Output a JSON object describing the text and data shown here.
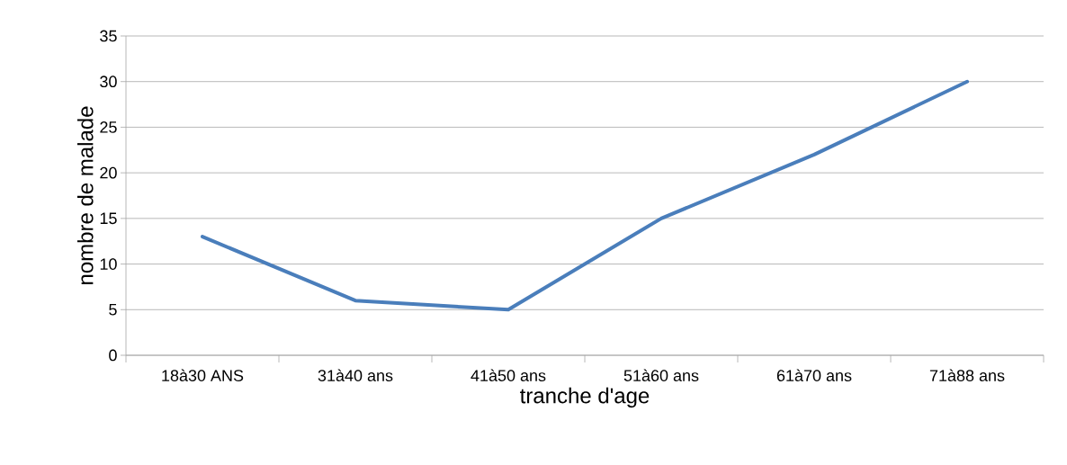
{
  "chart_data": {
    "type": "line",
    "xlabel": "tranche d'age",
    "ylabel": "nombre de malade",
    "categories": [
      "18à30 ANS",
      "31à40 ans",
      "41à50 ans",
      "51à60 ans",
      "61à70 ans",
      "71à88 ans"
    ],
    "values": [
      13,
      6,
      5,
      15,
      22,
      30
    ],
    "color": "#4a7ebb",
    "ylim": [
      0,
      35
    ],
    "yticks": [
      0,
      5,
      10,
      15,
      20,
      25,
      30,
      35
    ],
    "grid": "y"
  }
}
